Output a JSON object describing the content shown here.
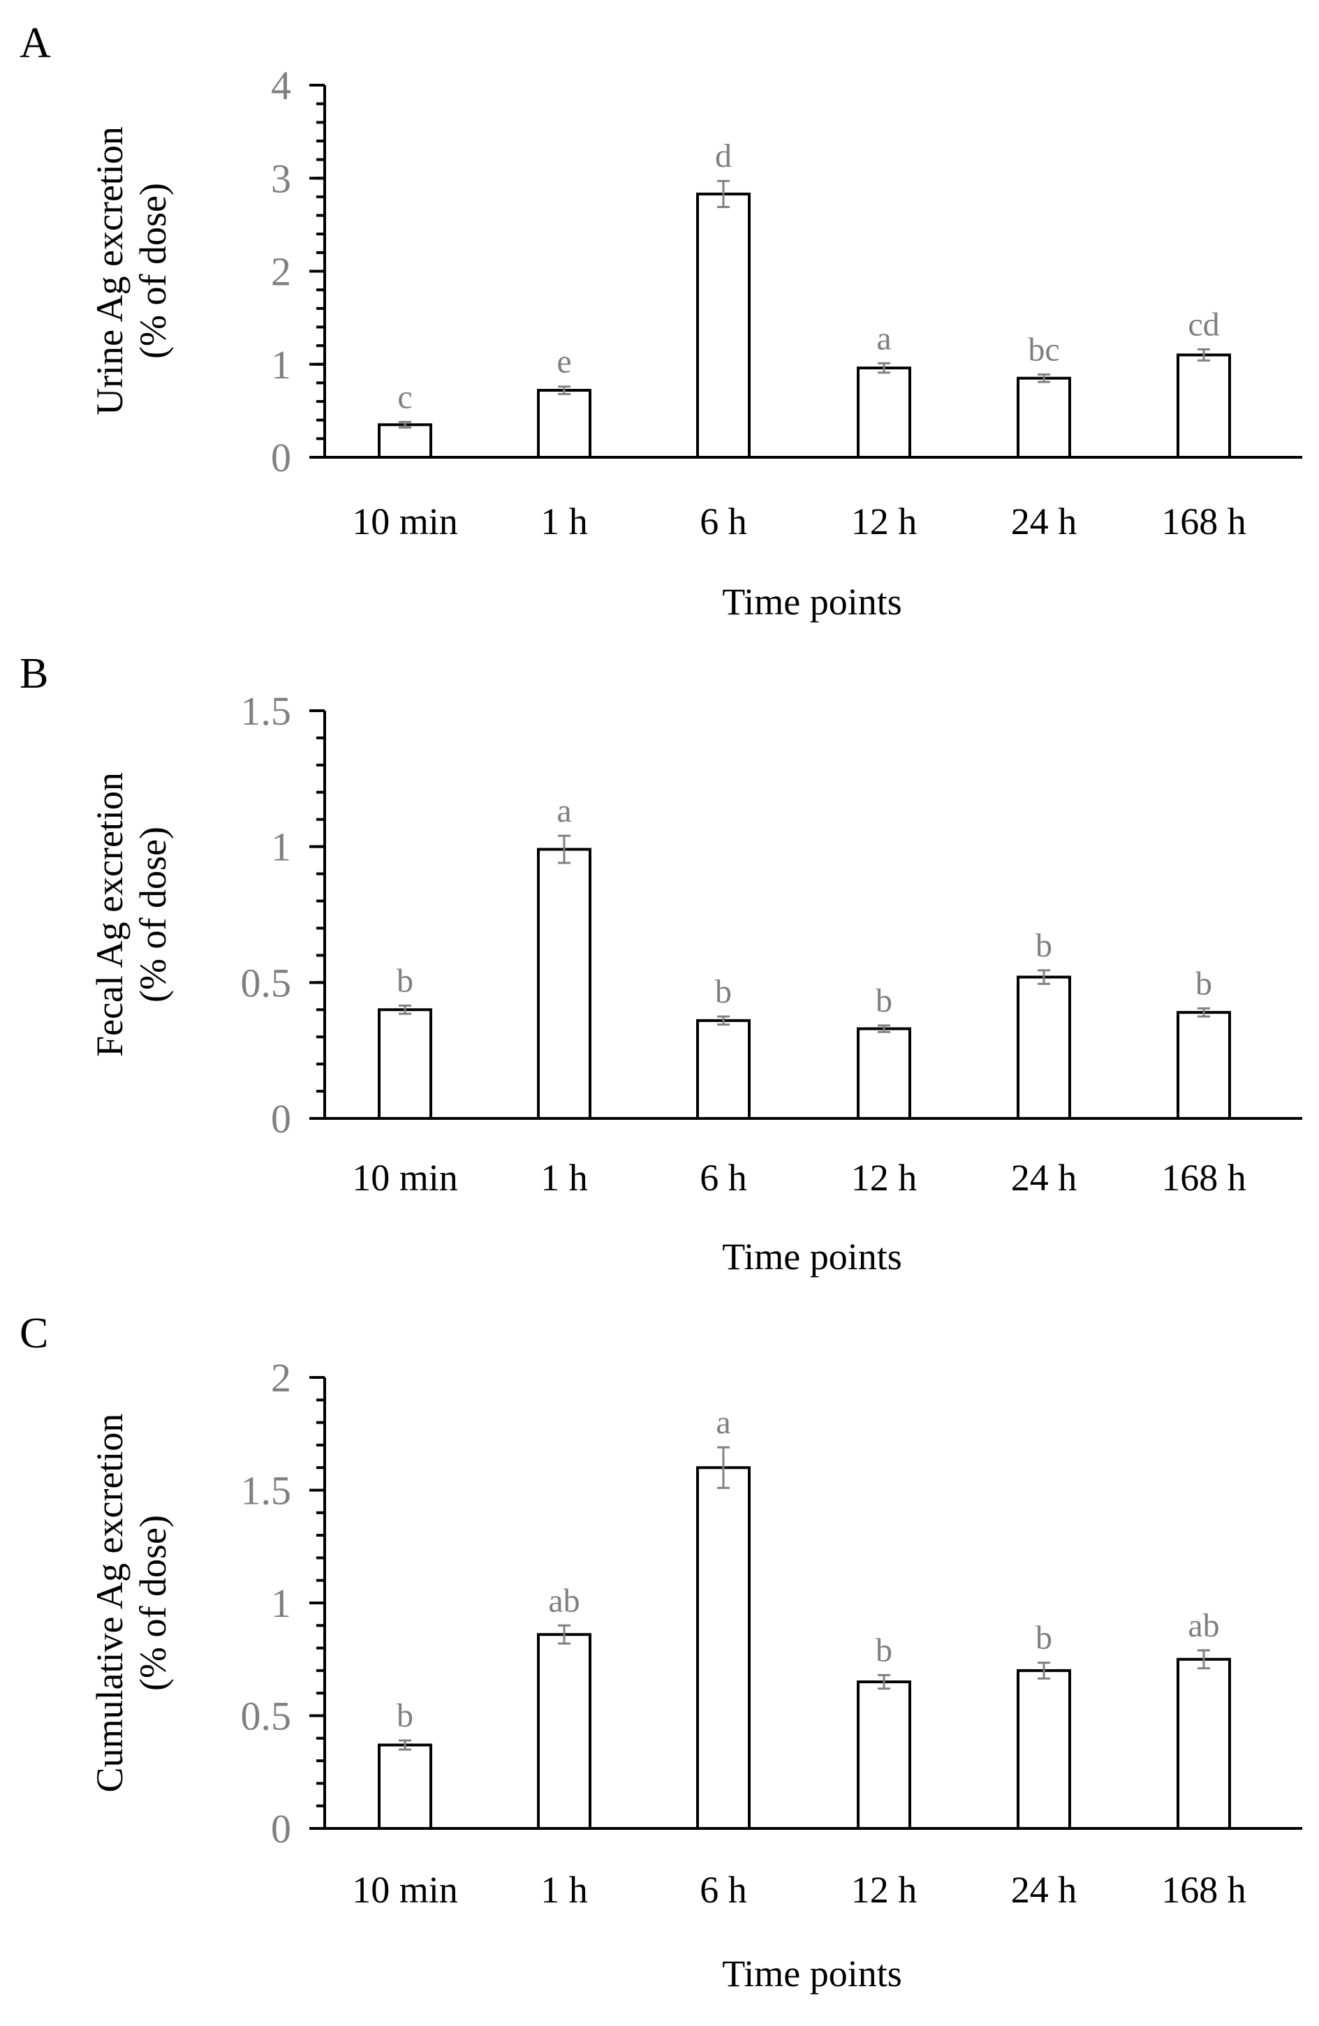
{
  "chart_data": [
    {
      "type": "bar",
      "panel": "A",
      "categories": [
        "10 min",
        "1 h",
        "6 h",
        "12 h",
        "24 h",
        "168 h"
      ],
      "values": [
        0.35,
        0.72,
        2.83,
        0.96,
        0.85,
        1.1
      ],
      "errors": [
        0.03,
        0.04,
        0.14,
        0.05,
        0.04,
        0.06
      ],
      "labels": [
        "c",
        "e",
        "d",
        "a",
        "bc",
        "cd"
      ],
      "ylim": [
        0,
        4
      ],
      "yticks": [
        "0",
        "1",
        "2",
        "3",
        "4"
      ],
      "minor_step": 0.2,
      "xlabel": "Time points",
      "ylabel": [
        "Urine Ag excretion",
        "(% of dose)"
      ],
      "grid": false
    },
    {
      "type": "bar",
      "panel": "B",
      "categories": [
        "10 min",
        "1 h",
        "6 h",
        "12 h",
        "24 h",
        "168 h"
      ],
      "values": [
        0.4,
        0.99,
        0.36,
        0.33,
        0.52,
        0.39
      ],
      "errors": [
        0.015,
        0.05,
        0.015,
        0.012,
        0.025,
        0.015
      ],
      "labels": [
        "b",
        "a",
        "b",
        "b",
        "b",
        "b"
      ],
      "ylim": [
        0,
        1.5
      ],
      "yticks": [
        "0",
        "0.5",
        "1",
        "1.5"
      ],
      "minor_step": 0.1,
      "xlabel": "Time points",
      "ylabel": [
        "Fecal Ag excretion",
        "(% of dose)"
      ],
      "grid": false
    },
    {
      "type": "bar",
      "panel": "C",
      "categories": [
        "10 min",
        "1 h",
        "6 h",
        "12 h",
        "24 h",
        "168 h"
      ],
      "values": [
        0.37,
        0.86,
        1.6,
        0.65,
        0.7,
        0.75
      ],
      "errors": [
        0.02,
        0.04,
        0.09,
        0.03,
        0.035,
        0.04
      ],
      "labels": [
        "b",
        "ab",
        "a",
        "b",
        "b",
        "ab"
      ],
      "ylim": [
        0,
        2
      ],
      "yticks": [
        "0",
        "0.5",
        "1",
        "1.5",
        "2"
      ],
      "minor_step": 0.1,
      "xlabel": "Time points",
      "ylabel": [
        "Cumulative Ag excretion",
        "(% of dose)"
      ],
      "grid": false
    }
  ]
}
